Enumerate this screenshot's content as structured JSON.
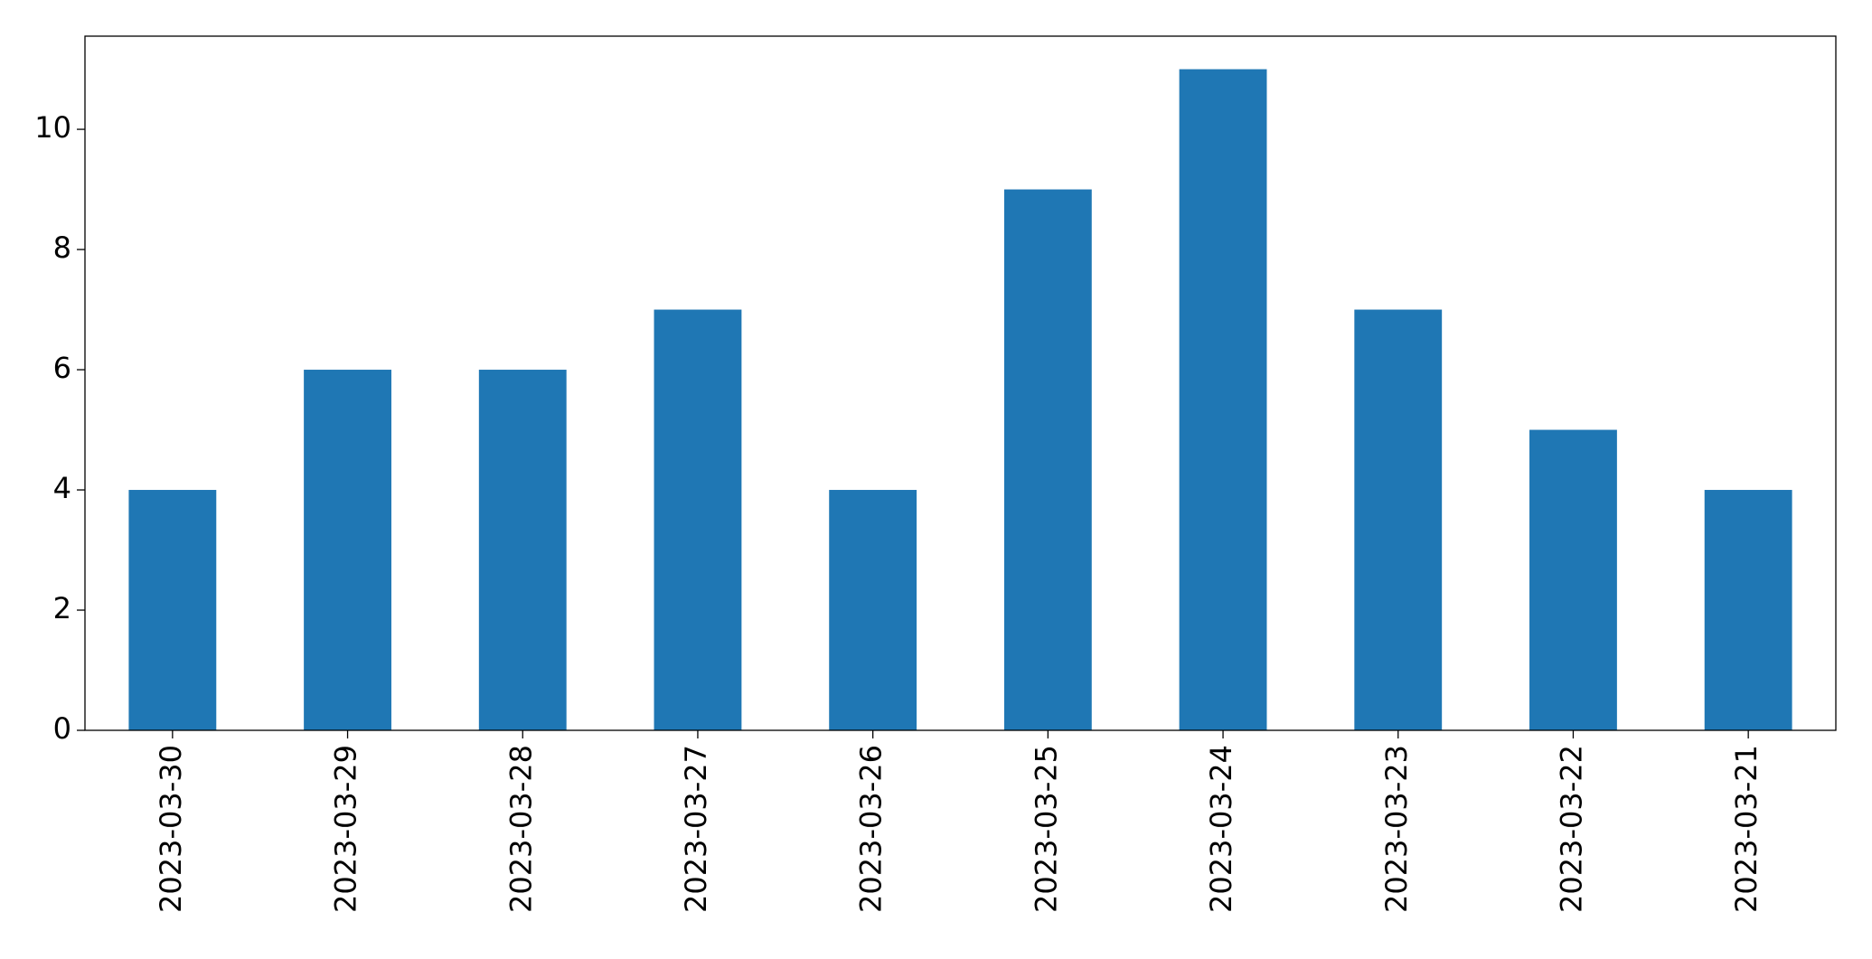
{
  "chart_data": {
    "type": "bar",
    "categories": [
      "2023-03-30",
      "2023-03-29",
      "2023-03-28",
      "2023-03-27",
      "2023-03-26",
      "2023-03-25",
      "2023-03-24",
      "2023-03-23",
      "2023-03-22",
      "2023-03-21"
    ],
    "values": [
      4,
      6,
      6,
      7,
      4,
      9,
      11,
      7,
      5,
      4
    ],
    "color": "#1f77b4",
    "ylim": [
      0,
      11.55
    ],
    "yticks": [
      0,
      2,
      4,
      6,
      8,
      10
    ],
    "grid": false
  }
}
